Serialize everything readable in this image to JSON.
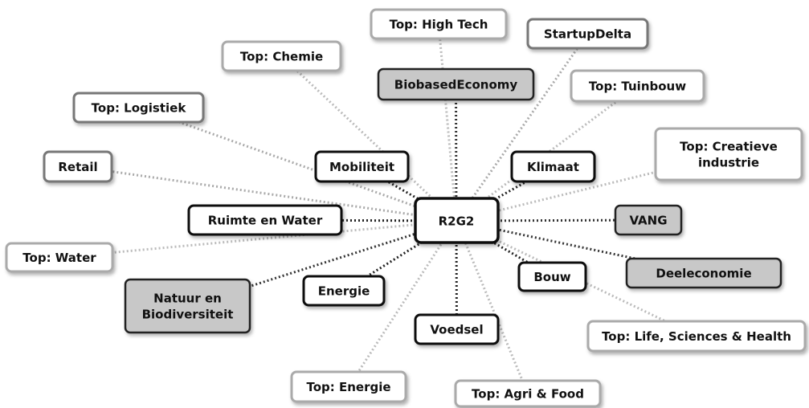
{
  "center": {
    "label": "R2G2"
  },
  "nodes": [
    {
      "label": [
        "Top: High Tech"
      ]
    },
    {
      "label": [
        "StartupDelta"
      ]
    },
    {
      "label": [
        "Top: Chemie"
      ]
    },
    {
      "label": [
        "BiobasedEconomy"
      ]
    },
    {
      "label": [
        "Top: Tuinbouw"
      ]
    },
    {
      "label": [
        "Top: Logistiek"
      ]
    },
    {
      "label": [
        "Top: Creatieve",
        "industrie"
      ]
    },
    {
      "label": [
        "Retail"
      ]
    },
    {
      "label": [
        "Mobiliteit"
      ]
    },
    {
      "label": [
        "Klimaat"
      ]
    },
    {
      "label": [
        "Ruimte en Water"
      ]
    },
    {
      "label": [
        "VANG"
      ]
    },
    {
      "label": [
        "Top: Water"
      ]
    },
    {
      "label": [
        "Deeleconomie"
      ]
    },
    {
      "label": [
        "Natuur en",
        "Biodiversiteit"
      ]
    },
    {
      "label": [
        "Energie"
      ]
    },
    {
      "label": [
        "Bouw"
      ]
    },
    {
      "label": [
        "Voedsel"
      ]
    },
    {
      "label": [
        "Top: Life, Sciences & Health"
      ]
    },
    {
      "label": [
        "Top: Energie"
      ]
    },
    {
      "label": [
        "Top: Agri & Food"
      ]
    }
  ]
}
